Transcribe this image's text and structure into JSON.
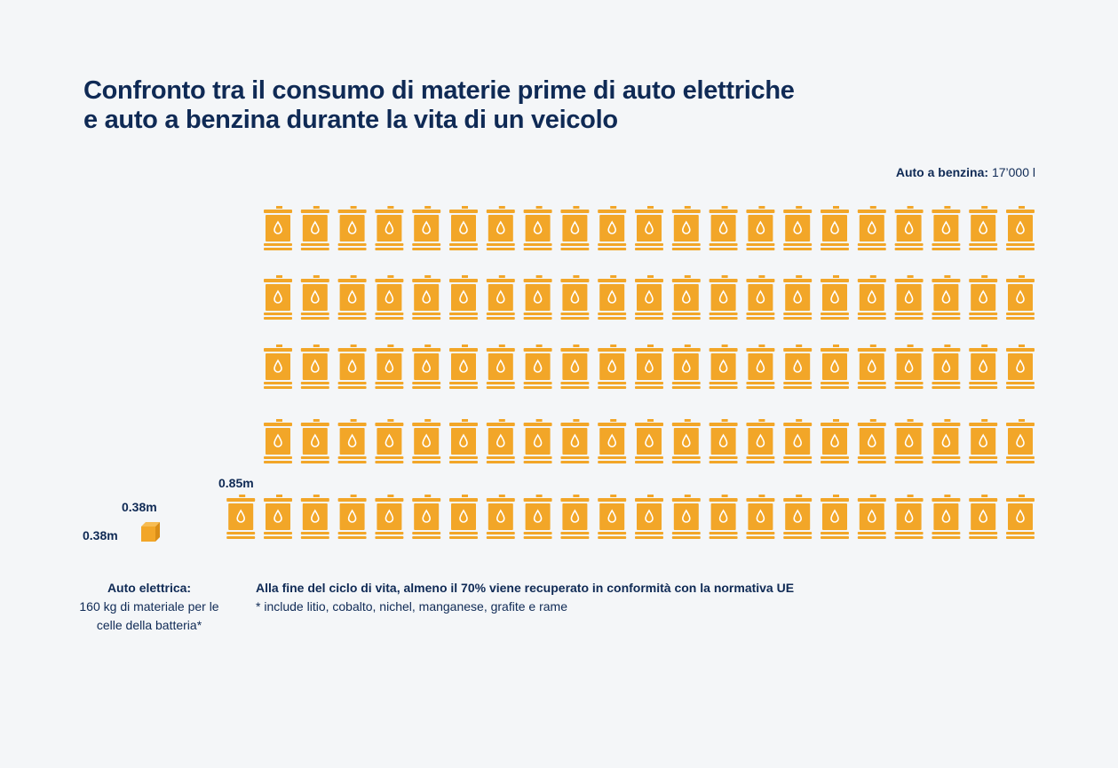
{
  "title": {
    "line1": "Confronto tra il consumo di materie prime di auto elettriche",
    "line2": "e auto a benzina durante la vita di un veicolo"
  },
  "petrol": {
    "label_bold": "Auto a benzina:",
    "label_value": "17’000 l"
  },
  "barrel_dimension": "0.85m",
  "battery_cube": {
    "height": "0.38m",
    "width": "0.38m"
  },
  "electric": {
    "label_bold": "Auto elettrica:",
    "label_body": "160 kg di materiale per le celle della batteria*"
  },
  "notes": {
    "main": "Alla fine del ciclo di vita, almeno il 70% viene recuperato in conformità con la normativa UE",
    "footnote": "* include litio, cobalto, nichel, manganese, grafite e rame"
  },
  "colors": {
    "barrel": "#f2a628",
    "text": "#0f2a55",
    "background": "#f4f6f8"
  },
  "chart_data": {
    "type": "pictogram",
    "title": "Confronto tra il consumo di materie prime di auto elettriche e auto a benzina durante la vita di un veicolo",
    "icon": "oil-barrel-icon",
    "rows": [
      21,
      21,
      21,
      21,
      22
    ],
    "total_icons": 106,
    "series": [
      {
        "name": "Auto a benzina",
        "value": 17000,
        "unit": "l"
      },
      {
        "name": "Auto elettrica",
        "value": 160,
        "unit": "kg"
      }
    ]
  }
}
